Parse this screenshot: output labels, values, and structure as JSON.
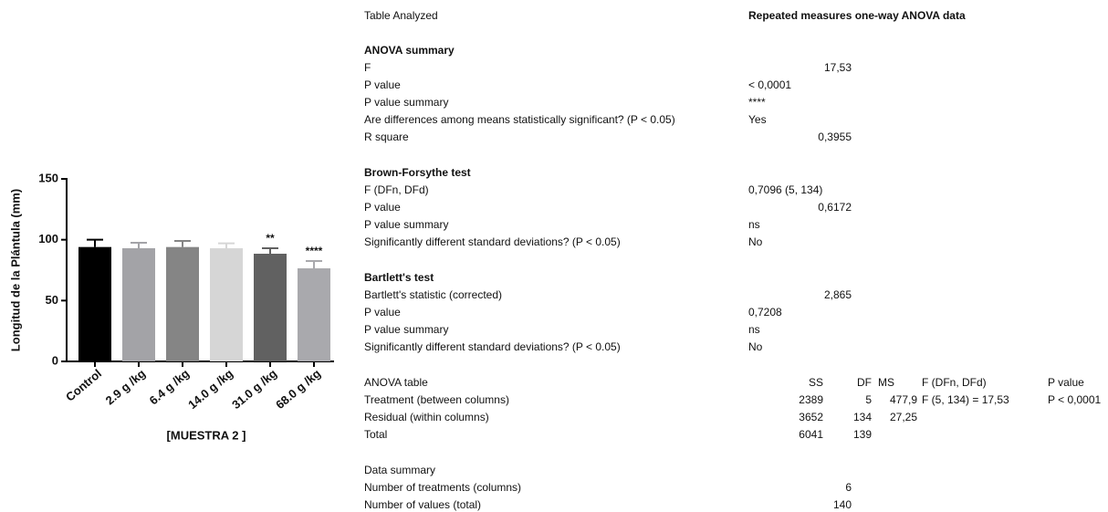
{
  "chart_data": {
    "type": "bar",
    "y_label": "Longitud de la Plántula (mm)",
    "x_label": "[MUESTRA 2 ]",
    "categories": [
      "Control",
      "2.9 g /kg",
      "6.4 g /kg",
      "14.0 g /kg",
      "31.0 g /kg",
      "68.0 g /kg"
    ],
    "values": [
      94,
      93,
      94,
      93,
      88.5,
      76.5
    ],
    "errors": [
      6,
      4.5,
      5,
      4,
      4.5,
      6
    ],
    "colors": [
      "#000000",
      "#a3a3a7",
      "#858585",
      "#d6d6d6",
      "#616161",
      "#a9a9ad"
    ],
    "significance": [
      null,
      null,
      null,
      null,
      "**",
      "****"
    ],
    "ylim": [
      0,
      150
    ],
    "yticks": [
      0,
      50,
      100,
      150
    ],
    "grid": false
  },
  "results": {
    "sections": [
      {
        "rows": [
          [
            "Table Analyzed",
            "Repeated measures one-way ANOVA data"
          ]
        ]
      },
      {
        "heading": "ANOVA summary",
        "rows": [
          [
            "F",
            "17,53"
          ],
          [
            "P value",
            "< 0,0001"
          ],
          [
            "P value summary",
            "****"
          ],
          [
            "Are differences among means statistically significant? (P < 0.05)",
            "Yes"
          ],
          [
            "R square",
            "0,3955"
          ]
        ]
      },
      {
        "heading": "Brown-Forsythe test",
        "rows": [
          [
            "F (DFn, DFd)",
            "0,7096 (5, 134)"
          ],
          [
            "P value",
            "0,6172"
          ],
          [
            "P value summary",
            "ns"
          ],
          [
            "Significantly different standard deviations? (P < 0.05)",
            "No"
          ]
        ]
      },
      {
        "heading": "Bartlett's test",
        "rows": [
          [
            "Bartlett's statistic (corrected)",
            "2,865"
          ],
          [
            "P value",
            "0,7208"
          ],
          [
            "P value summary",
            "ns"
          ],
          [
            "Significantly different standard deviations? (P < 0.05)",
            "No"
          ]
        ]
      },
      {
        "header": [
          "ANOVA table",
          "SS",
          "DF",
          "MS",
          "F (DFn, DFd)",
          "P value"
        ],
        "rows": [
          [
            "Treatment (between columns)",
            "2389",
            "5",
            "477,9",
            "F (5, 134) = 17,53",
            "P < 0,0001"
          ],
          [
            "Residual (within columns)",
            "3652",
            "134",
            "27,25"
          ],
          [
            "Total",
            "6041",
            "139"
          ]
        ]
      },
      {
        "heading": "Data summary",
        "rows": [
          [
            "Number of treatments (columns)",
            "6"
          ],
          [
            "Number of values (total)",
            "140"
          ]
        ]
      }
    ]
  }
}
